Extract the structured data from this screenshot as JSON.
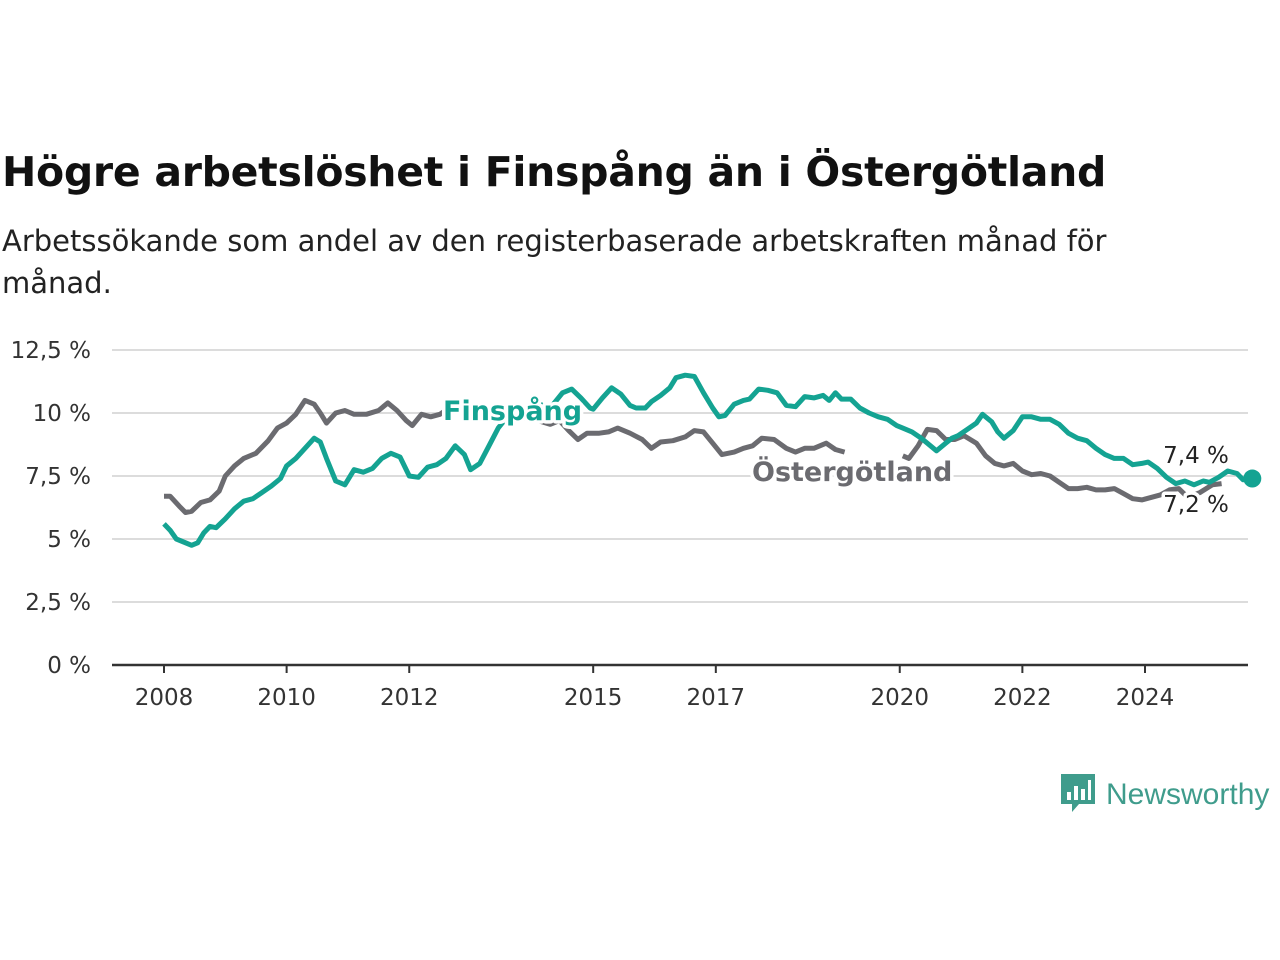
{
  "header": {
    "title": "Högre arbetslöshet i Finspång än i Östergötland",
    "subtitle": "Arbetssökande som andel av den registerbaserade arbetskraften månad för månad."
  },
  "brand": {
    "name": "Newsworthy",
    "color": "#3f9c8c",
    "icon": "newsworthy-chart-bubble-icon"
  },
  "chart_data": {
    "type": "line",
    "title": "Högre arbetslöshet i Finspång än i Östergötland",
    "subtitle": "Arbetssökande som andel av den registerbaserade arbetskraften månad för månad.",
    "xlabel": "",
    "ylabel": "",
    "ylim": [
      0,
      12.5
    ],
    "xlim": [
      2007.2,
      2025.8
    ],
    "y_ticks": [
      0,
      2.5,
      5,
      7.5,
      10,
      12.5
    ],
    "y_tick_labels": [
      "0 %",
      "2,5 %",
      "5 %",
      "7,5 %",
      "10 %",
      "12,5 %"
    ],
    "x_ticks": [
      2008,
      2010,
      2012,
      2015,
      2017,
      2020,
      2022,
      2024
    ],
    "x_tick_labels": [
      "2008",
      "2010",
      "2012",
      "2015",
      "2017",
      "2020",
      "2022",
      "2024"
    ],
    "grid": "horizontal",
    "legend": "inline labels",
    "series": [
      {
        "name": "Östergötland",
        "color": "#6b6b70",
        "label_color": "#6b6b70",
        "end_label": "7,2 %",
        "points": [
          [
            2008.0,
            6.7
          ],
          [
            2008.1,
            6.7
          ],
          [
            2008.25,
            6.3
          ],
          [
            2008.35,
            6.05
          ],
          [
            2008.45,
            6.1
          ],
          [
            2008.6,
            6.45
          ],
          [
            2008.75,
            6.55
          ],
          [
            2008.9,
            6.9
          ],
          [
            2009.0,
            7.5
          ],
          [
            2009.15,
            7.9
          ],
          [
            2009.3,
            8.2
          ],
          [
            2009.5,
            8.4
          ],
          [
            2009.7,
            8.9
          ],
          [
            2009.85,
            9.4
          ],
          [
            2010.0,
            9.6
          ],
          [
            2010.15,
            9.95
          ],
          [
            2010.3,
            10.5
          ],
          [
            2010.45,
            10.35
          ],
          [
            2010.55,
            10.0
          ],
          [
            2010.65,
            9.6
          ],
          [
            2010.8,
            10.0
          ],
          [
            2010.95,
            10.1
          ],
          [
            2011.1,
            9.95
          ],
          [
            2011.3,
            9.95
          ],
          [
            2011.5,
            10.1
          ],
          [
            2011.65,
            10.4
          ],
          [
            2011.8,
            10.1
          ],
          [
            2011.95,
            9.7
          ],
          [
            2012.05,
            9.5
          ],
          [
            2012.2,
            9.95
          ],
          [
            2012.35,
            9.85
          ],
          [
            2012.5,
            9.95
          ],
          [
            2012.65,
            10.2
          ],
          [
            2012.85,
            10.2
          ],
          [
            2013.0,
            10.05
          ],
          [
            2013.1,
            9.7
          ],
          [
            2013.2,
            9.95
          ],
          [
            2013.35,
            10.05
          ],
          [
            2013.6,
            9.9
          ],
          [
            2013.85,
            9.8
          ],
          [
            2014.1,
            9.7
          ],
          [
            2014.3,
            9.55
          ],
          [
            2014.45,
            9.7
          ],
          [
            2014.6,
            9.3
          ],
          [
            2014.75,
            8.95
          ],
          [
            2014.9,
            9.2
          ],
          [
            2015.1,
            9.2
          ],
          [
            2015.25,
            9.25
          ],
          [
            2015.4,
            9.4
          ],
          [
            2015.6,
            9.2
          ],
          [
            2015.8,
            8.95
          ],
          [
            2015.95,
            8.6
          ],
          [
            2016.1,
            8.85
          ],
          [
            2016.3,
            8.9
          ],
          [
            2016.5,
            9.05
          ],
          [
            2016.65,
            9.3
          ],
          [
            2016.8,
            9.25
          ],
          [
            2016.95,
            8.8
          ],
          [
            2017.1,
            8.35
          ],
          [
            2017.3,
            8.45
          ],
          [
            2017.45,
            8.6
          ],
          [
            2017.6,
            8.7
          ],
          [
            2017.75,
            9.0
          ],
          [
            2017.95,
            8.95
          ],
          [
            2018.15,
            8.6
          ],
          [
            2018.3,
            8.45
          ],
          [
            2018.45,
            8.6
          ],
          [
            2018.6,
            8.6
          ],
          [
            2018.8,
            8.8
          ],
          [
            2018.95,
            8.55
          ],
          [
            2019.1,
            8.45
          ]
        ],
        "points_2": [
          [
            2020.05,
            8.3
          ],
          [
            2020.15,
            8.2
          ],
          [
            2020.3,
            8.7
          ],
          [
            2020.45,
            9.35
          ],
          [
            2020.6,
            9.3
          ],
          [
            2020.75,
            8.95
          ],
          [
            2020.9,
            8.95
          ],
          [
            2021.05,
            9.1
          ],
          [
            2021.25,
            8.8
          ],
          [
            2021.4,
            8.3
          ],
          [
            2021.55,
            8.0
          ],
          [
            2021.7,
            7.9
          ],
          [
            2021.85,
            8.0
          ],
          [
            2022.0,
            7.7
          ],
          [
            2022.15,
            7.55
          ],
          [
            2022.3,
            7.6
          ],
          [
            2022.45,
            7.5
          ],
          [
            2022.6,
            7.25
          ],
          [
            2022.75,
            7.0
          ],
          [
            2022.9,
            7.0
          ],
          [
            2023.05,
            7.05
          ],
          [
            2023.2,
            6.95
          ],
          [
            2023.35,
            6.95
          ],
          [
            2023.5,
            7.0
          ],
          [
            2023.65,
            6.8
          ],
          [
            2023.8,
            6.6
          ],
          [
            2023.95,
            6.55
          ],
          [
            2024.1,
            6.65
          ],
          [
            2024.25,
            6.75
          ],
          [
            2024.4,
            6.95
          ],
          [
            2024.55,
            7.0
          ],
          [
            2024.7,
            6.65
          ],
          [
            2024.9,
            6.85
          ],
          [
            2025.1,
            7.15
          ],
          [
            2025.25,
            7.2
          ]
        ]
      },
      {
        "name": "Finspång",
        "color": "#14a392",
        "label_color": "#14a392",
        "end_label": "7,4 %",
        "points": [
          [
            2008.0,
            5.6
          ],
          [
            2008.1,
            5.35
          ],
          [
            2008.2,
            5.0
          ],
          [
            2008.3,
            4.9
          ],
          [
            2008.45,
            4.75
          ],
          [
            2008.55,
            4.85
          ],
          [
            2008.65,
            5.25
          ],
          [
            2008.75,
            5.5
          ],
          [
            2008.85,
            5.45
          ],
          [
            2009.0,
            5.8
          ],
          [
            2009.15,
            6.2
          ],
          [
            2009.3,
            6.5
          ],
          [
            2009.45,
            6.6
          ],
          [
            2009.6,
            6.85
          ],
          [
            2009.75,
            7.1
          ],
          [
            2009.9,
            7.4
          ],
          [
            2010.0,
            7.9
          ],
          [
            2010.15,
            8.2
          ],
          [
            2010.3,
            8.6
          ],
          [
            2010.45,
            9.0
          ],
          [
            2010.55,
            8.85
          ],
          [
            2010.65,
            8.2
          ],
          [
            2010.8,
            7.3
          ],
          [
            2010.95,
            7.15
          ],
          [
            2011.1,
            7.75
          ],
          [
            2011.25,
            7.65
          ],
          [
            2011.4,
            7.8
          ],
          [
            2011.55,
            8.2
          ],
          [
            2011.7,
            8.4
          ],
          [
            2011.85,
            8.25
          ],
          [
            2012.0,
            7.5
          ],
          [
            2012.15,
            7.45
          ],
          [
            2012.3,
            7.85
          ],
          [
            2012.45,
            7.95
          ],
          [
            2012.6,
            8.2
          ],
          [
            2012.75,
            8.7
          ],
          [
            2012.9,
            8.35
          ],
          [
            2013.0,
            7.75
          ],
          [
            2013.15,
            8.0
          ],
          [
            2013.3,
            8.7
          ],
          [
            2013.45,
            9.4
          ],
          [
            2013.6,
            9.85
          ],
          [
            2013.75,
            10.05
          ],
          [
            2013.9,
            10.1
          ],
          [
            2014.05,
            10.5
          ],
          [
            2014.2,
            10.25
          ],
          [
            2014.35,
            10.35
          ],
          [
            2014.5,
            10.8
          ],
          [
            2014.65,
            10.95
          ],
          [
            2014.8,
            10.6
          ],
          [
            2014.95,
            10.2
          ],
          [
            2015.0,
            10.15
          ],
          [
            2015.15,
            10.6
          ],
          [
            2015.3,
            11.0
          ],
          [
            2015.45,
            10.75
          ],
          [
            2015.6,
            10.3
          ],
          [
            2015.7,
            10.2
          ],
          [
            2015.85,
            10.2
          ],
          [
            2015.95,
            10.45
          ],
          [
            2016.1,
            10.7
          ],
          [
            2016.25,
            11.0
          ],
          [
            2016.35,
            11.4
          ],
          [
            2016.5,
            11.5
          ],
          [
            2016.65,
            11.45
          ],
          [
            2016.8,
            10.8
          ],
          [
            2016.95,
            10.2
          ],
          [
            2017.05,
            9.85
          ],
          [
            2017.15,
            9.9
          ],
          [
            2017.3,
            10.35
          ],
          [
            2017.45,
            10.5
          ],
          [
            2017.55,
            10.55
          ],
          [
            2017.7,
            10.95
          ],
          [
            2017.85,
            10.9
          ],
          [
            2018.0,
            10.8
          ],
          [
            2018.15,
            10.3
          ],
          [
            2018.3,
            10.25
          ],
          [
            2018.45,
            10.65
          ],
          [
            2018.6,
            10.6
          ],
          [
            2018.75,
            10.7
          ],
          [
            2018.85,
            10.5
          ],
          [
            2018.95,
            10.8
          ],
          [
            2019.05,
            10.55
          ],
          [
            2019.2,
            10.55
          ],
          [
            2019.35,
            10.2
          ],
          [
            2019.5,
            10.0
          ],
          [
            2019.65,
            9.85
          ],
          [
            2019.8,
            9.75
          ],
          [
            2019.95,
            9.5
          ],
          [
            2020.05,
            9.4
          ],
          [
            2020.2,
            9.25
          ],
          [
            2020.35,
            9.0
          ],
          [
            2020.45,
            8.8
          ],
          [
            2020.6,
            8.5
          ],
          [
            2020.75,
            8.8
          ],
          [
            2020.85,
            9.0
          ],
          [
            2020.95,
            9.1
          ],
          [
            2021.1,
            9.35
          ],
          [
            2021.25,
            9.6
          ],
          [
            2021.35,
            9.95
          ],
          [
            2021.5,
            9.65
          ],
          [
            2021.6,
            9.25
          ],
          [
            2021.7,
            9.0
          ],
          [
            2021.85,
            9.3
          ],
          [
            2022.0,
            9.85
          ],
          [
            2022.15,
            9.85
          ],
          [
            2022.3,
            9.75
          ],
          [
            2022.45,
            9.75
          ],
          [
            2022.6,
            9.55
          ],
          [
            2022.75,
            9.2
          ],
          [
            2022.9,
            9.0
          ],
          [
            2023.05,
            8.9
          ],
          [
            2023.2,
            8.6
          ],
          [
            2023.35,
            8.35
          ],
          [
            2023.5,
            8.2
          ],
          [
            2023.65,
            8.2
          ],
          [
            2023.8,
            7.95
          ],
          [
            2023.95,
            8.0
          ],
          [
            2024.05,
            8.05
          ],
          [
            2024.2,
            7.8
          ],
          [
            2024.35,
            7.45
          ],
          [
            2024.5,
            7.2
          ],
          [
            2024.65,
            7.3
          ],
          [
            2024.8,
            7.15
          ],
          [
            2024.95,
            7.3
          ],
          [
            2025.05,
            7.25
          ],
          [
            2025.2,
            7.45
          ],
          [
            2025.35,
            7.7
          ],
          [
            2025.5,
            7.6
          ],
          [
            2025.6,
            7.35
          ],
          [
            2025.75,
            7.4
          ]
        ]
      }
    ]
  }
}
